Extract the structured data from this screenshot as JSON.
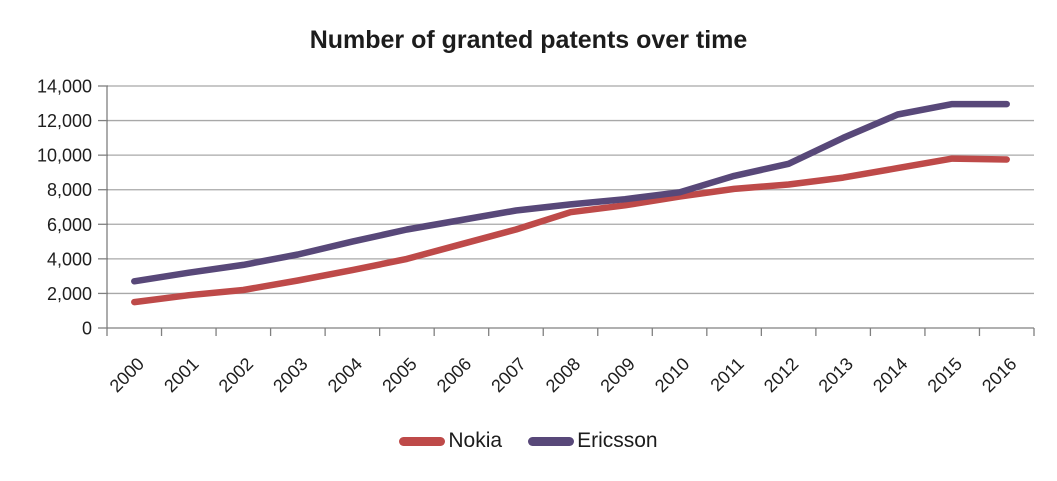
{
  "title": "Number of granted patents over time",
  "colors": {
    "nokia_line": "#BE4A49",
    "ericsson_line": "#584879",
    "gridline": "#A8A8A8",
    "axis": "#808080",
    "label_text": "#1E1E1E"
  },
  "legend": {
    "items": [
      "Nokia",
      "Ericsson"
    ],
    "position": "bottom-center"
  },
  "chart_data": {
    "type": "line",
    "title": "Number of granted patents over time",
    "x": [
      2000,
      2001,
      2002,
      2003,
      2004,
      2005,
      2006,
      2007,
      2008,
      2009,
      2010,
      2011,
      2012,
      2013,
      2014,
      2015,
      2016
    ],
    "x_tick_labels": [
      "2000",
      "2001",
      "2002",
      "2003",
      "2004",
      "2005",
      "2006",
      "2007",
      "2008",
      "2009",
      "2010",
      "2011",
      "2012",
      "2013",
      "2014",
      "2015",
      "2016"
    ],
    "series": [
      {
        "name": "Nokia",
        "color": "#BE4A49",
        "values": [
          1500,
          1900,
          2200,
          2750,
          3350,
          4000,
          4850,
          5700,
          6700,
          7100,
          7600,
          8050,
          8300,
          8700,
          9250,
          9800,
          9750
        ]
      },
      {
        "name": "Ericsson",
        "color": "#584879",
        "values": [
          2700,
          3200,
          3650,
          4250,
          5000,
          5700,
          6250,
          6800,
          7150,
          7450,
          7850,
          8800,
          9500,
          11000,
          12350,
          12950,
          12950
        ]
      }
    ],
    "ylim": [
      0,
      14000
    ],
    "y_ticks": [
      {
        "value": 0,
        "label": "0"
      },
      {
        "value": 2000,
        "label": "2,000"
      },
      {
        "value": 4000,
        "label": "4,000"
      },
      {
        "value": 6000,
        "label": "6,000"
      },
      {
        "value": 8000,
        "label": "8,000"
      },
      {
        "value": 10000,
        "label": "10,000"
      },
      {
        "value": 12000,
        "label": "12,000"
      },
      {
        "value": 14000,
        "label": "14,000"
      }
    ],
    "grid": true,
    "legend_position": "bottom"
  }
}
